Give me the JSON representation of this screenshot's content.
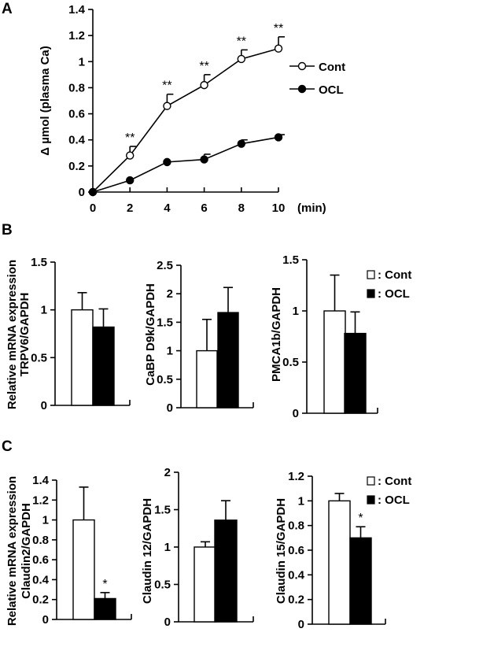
{
  "panel_labels": [
    "A",
    "B",
    "C"
  ],
  "shared_ylabel": "Relative mRNA expression",
  "legend": {
    "cont": "Cont",
    "ocl": "OCL",
    "cont_bar": ": Cont",
    "ocl_bar": ": OCL"
  },
  "chart_data": [
    {
      "id": "A",
      "type": "line",
      "ylabel": "Δ µmol (plasma  Ca)",
      "xlabel": "(min)",
      "x": [
        0,
        2,
        4,
        6,
        8,
        10
      ],
      "xticks": [
        "0",
        "2",
        "4",
        "6",
        "8",
        "10"
      ],
      "yticks": [
        "0",
        "0.2",
        "0.4",
        "0.6",
        "0.8",
        "1",
        "1.2",
        "1.4"
      ],
      "ylim": [
        0,
        1.4
      ],
      "xlim": [
        0,
        10
      ],
      "series": [
        {
          "name": "Cont",
          "marker": "open-circle",
          "values": [
            0,
            0.28,
            0.66,
            0.82,
            1.02,
            1.1
          ],
          "errors": [
            0,
            0.07,
            0.09,
            0.08,
            0.07,
            0.09
          ]
        },
        {
          "name": "OCL",
          "marker": "filled-circle",
          "values": [
            0,
            0.09,
            0.23,
            0.25,
            0.37,
            0.42
          ],
          "errors": [
            0,
            0,
            0.0,
            0.04,
            0.03,
            0.02
          ]
        }
      ],
      "annotations": [
        "",
        "**",
        "**",
        "**",
        "**",
        "**"
      ],
      "legend_position": "right"
    },
    {
      "id": "B1",
      "type": "bar",
      "ylabel": "TRPV6/GAPDH",
      "ylim": [
        0,
        1.5
      ],
      "yticks": [
        "0",
        "0.5",
        "1",
        "1.5"
      ],
      "categories": [
        "Cont",
        "OCL"
      ],
      "values": [
        1.0,
        0.82
      ],
      "errors": [
        0.18,
        0.19
      ],
      "annotations": [
        "",
        ""
      ]
    },
    {
      "id": "B2",
      "type": "bar",
      "ylabel": "CaBP D9k/GAPDH",
      "ylim": [
        0,
        2.5
      ],
      "yticks": [
        "0",
        "0.5",
        "1",
        "1.5",
        "2",
        "2.5"
      ],
      "categories": [
        "Cont",
        "OCL"
      ],
      "values": [
        1.0,
        1.67
      ],
      "errors": [
        0.55,
        0.44
      ],
      "annotations": [
        "",
        ""
      ]
    },
    {
      "id": "B3",
      "type": "bar",
      "ylabel": "PMCA1b/GAPDH",
      "ylim": [
        0,
        1.5
      ],
      "yticks": [
        "0",
        "0.5",
        "1",
        "1.5"
      ],
      "categories": [
        "Cont",
        "OCL"
      ],
      "values": [
        1.0,
        0.78
      ],
      "errors": [
        0.35,
        0.21
      ],
      "annotations": [
        "",
        ""
      ]
    },
    {
      "id": "C1",
      "type": "bar",
      "ylabel": "Claudin2/GAPDH",
      "ylim": [
        0,
        1.4
      ],
      "yticks": [
        "0",
        "0.2",
        "0.4",
        "0.6",
        "0.8",
        "1",
        "1.2",
        "1.4"
      ],
      "categories": [
        "Cont",
        "OCL"
      ],
      "values": [
        1.0,
        0.21
      ],
      "errors": [
        0.33,
        0.06
      ],
      "annotations": [
        "",
        "*"
      ]
    },
    {
      "id": "C2",
      "type": "bar",
      "ylabel": "Claudin 12/GAPDH",
      "ylim": [
        0,
        2
      ],
      "yticks": [
        "0",
        "0.5",
        "1",
        "1.5",
        "2"
      ],
      "categories": [
        "Cont",
        "OCL"
      ],
      "values": [
        1.0,
        1.36
      ],
      "errors": [
        0.07,
        0.26
      ],
      "annotations": [
        "",
        ""
      ]
    },
    {
      "id": "C3",
      "type": "bar",
      "ylabel": "Claudin 15/GAPDH",
      "ylim": [
        0,
        1.2
      ],
      "yticks": [
        "0",
        "0.2",
        "0.4",
        "0.6",
        "0.8",
        "1",
        "1.2"
      ],
      "categories": [
        "Cont",
        "OCL"
      ],
      "values": [
        1.0,
        0.7
      ],
      "errors": [
        0.06,
        0.09
      ],
      "annotations": [
        "",
        "*"
      ]
    }
  ]
}
